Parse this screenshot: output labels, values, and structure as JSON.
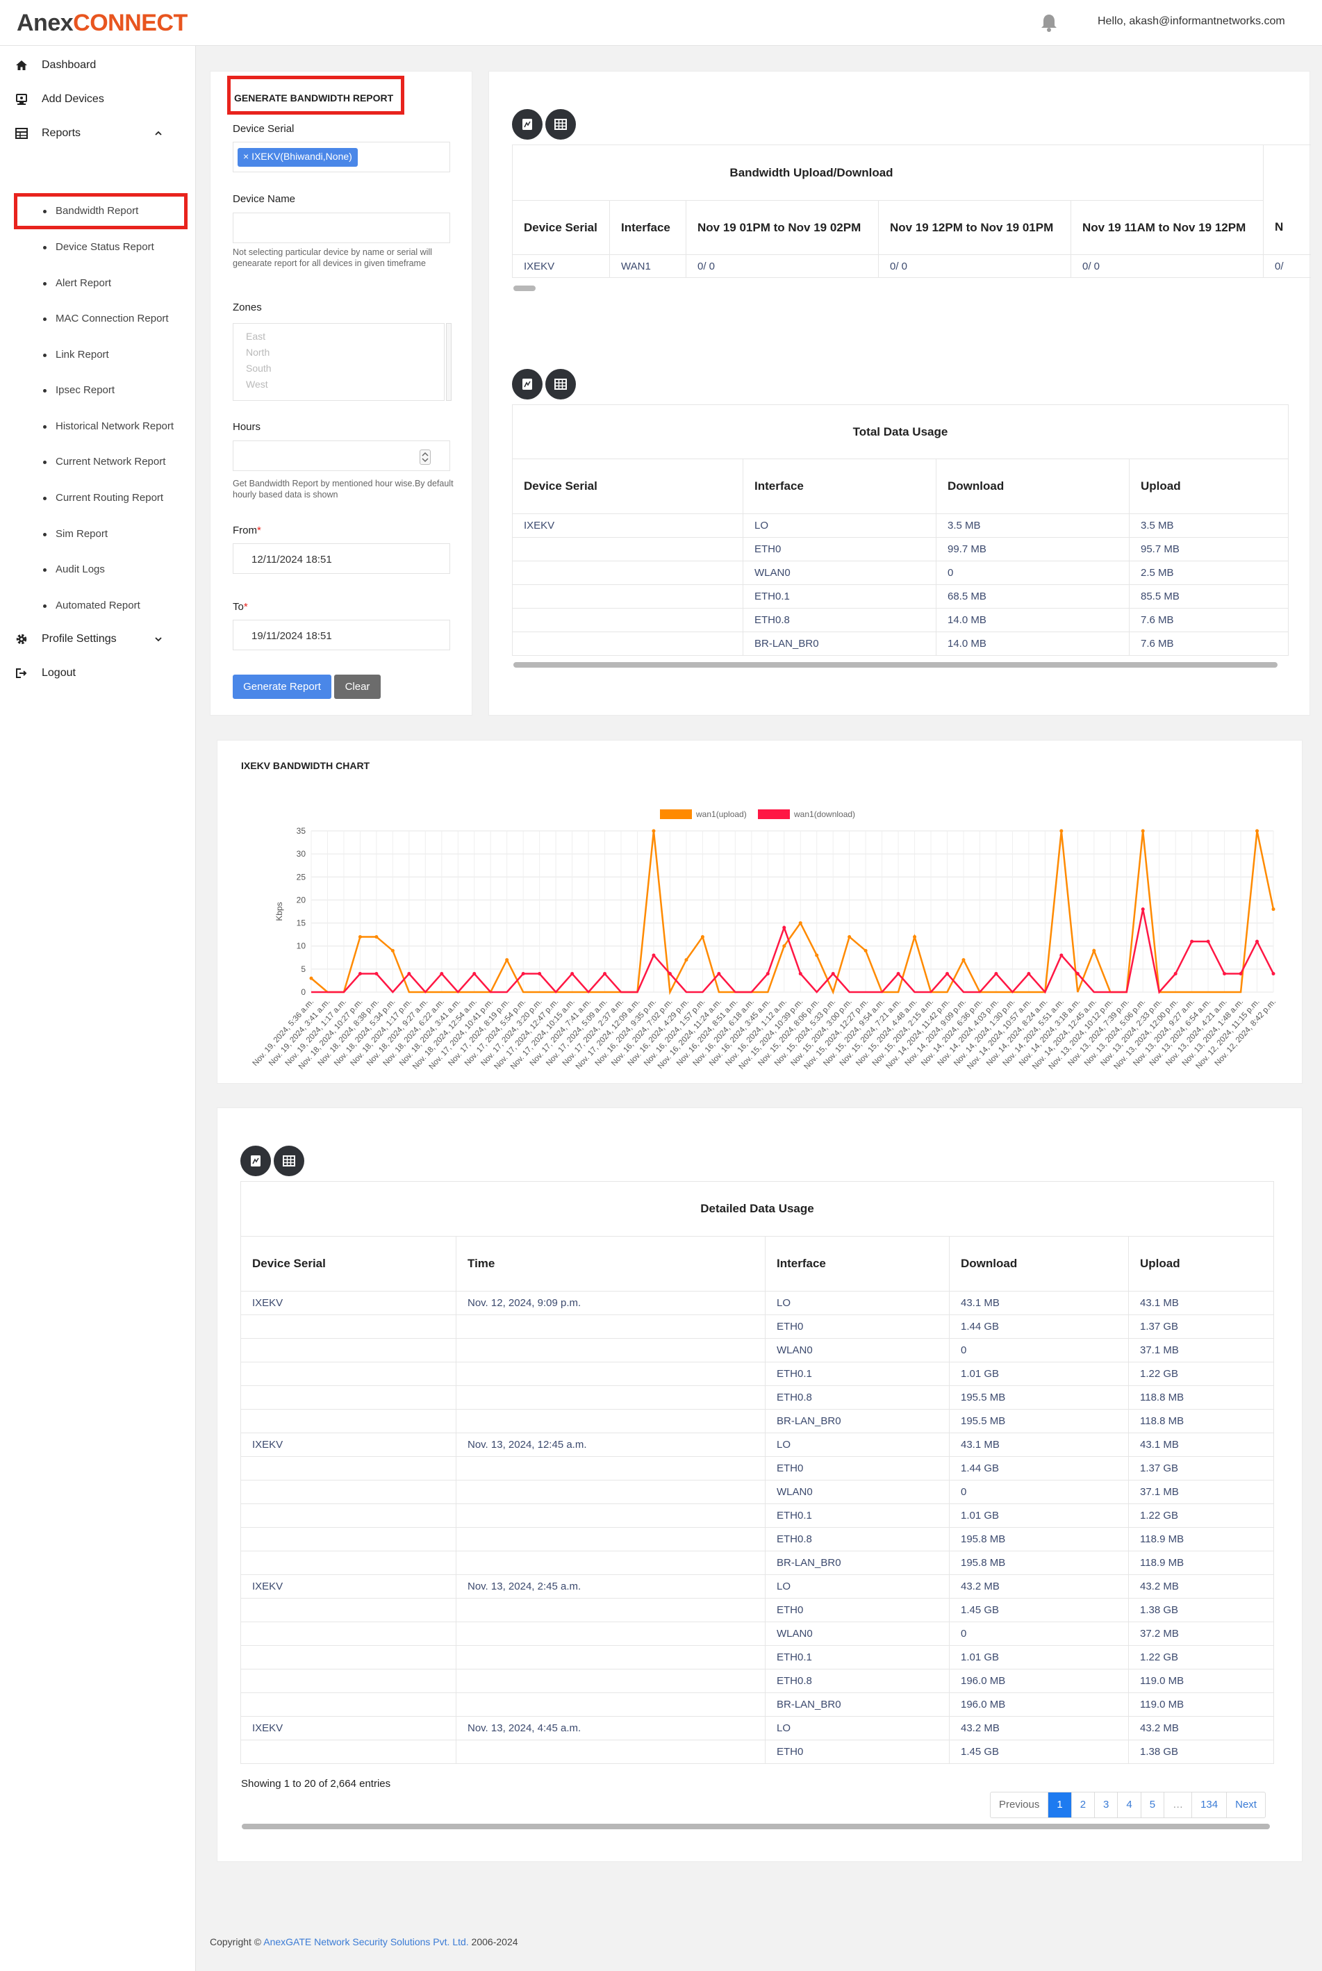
{
  "header": {
    "logo_main": "Anex",
    "logo_brand": "CONNECT",
    "greeting": "Hello, akash@informantnetworks.com"
  },
  "sidebar": {
    "items": [
      {
        "label": "Dashboard",
        "icon": "home-icon"
      },
      {
        "label": "Add Devices",
        "icon": "add-device-icon"
      },
      {
        "label": "Reports",
        "icon": "reports-icon"
      }
    ],
    "reports_sub": [
      "Bandwidth Report",
      "Device Status Report",
      "Alert Report",
      "MAC Connection Report",
      "Link Report",
      "Ipsec Report",
      "Historical Network Report",
      "Current Network Report",
      "Current Routing Report",
      "Sim Report",
      "Audit Logs",
      "Automated Report"
    ],
    "profile_settings": "Profile Settings",
    "logout": "Logout"
  },
  "form": {
    "title": "GENERATE BANDWIDTH REPORT",
    "device_serial_label": "Device Serial",
    "device_serial_chip": "× IXEKV(Bhiwandi,None)",
    "device_name_label": "Device Name",
    "device_name_help": "Not selecting particular device by name or serial will genearate report for all devices in given timeframe",
    "zones_label": "Zones",
    "zones": [
      "East",
      "North",
      "South",
      "West"
    ],
    "hours_label": "Hours",
    "hours_help": "Get Bandwidth Report by mentioned hour wise.By default hourly based data is shown",
    "from_label": "From",
    "from_value": "12/11/2024 18:51",
    "to_label": "To",
    "to_value": "19/11/2024 18:51",
    "required_mark": "*",
    "generate_button": "Generate Report",
    "clear_button": "Clear"
  },
  "bandwidth_table": {
    "title": "Bandwidth Upload/Download",
    "headers": [
      "Device Serial",
      "Interface",
      "Nov 19 01PM to Nov 19 02PM",
      "Nov 19 12PM to Nov 19 01PM",
      "Nov 19 11AM to Nov 19 12PM",
      "N"
    ],
    "rows": [
      [
        "IXEKV",
        "WAN1",
        "0/ 0",
        "0/ 0",
        "0/ 0",
        "0/"
      ]
    ]
  },
  "total_usage_table": {
    "title": "Total Data Usage",
    "headers": [
      "Device Serial",
      "Interface",
      "Download",
      "Upload"
    ],
    "rows": [
      [
        "IXEKV",
        "LO",
        "3.5 MB",
        "3.5 MB"
      ],
      [
        "",
        "ETH0",
        "99.7 MB",
        "95.7 MB"
      ],
      [
        "",
        "WLAN0",
        "0",
        "2.5 MB"
      ],
      [
        "",
        "ETH0.1",
        "68.5 MB",
        "85.5 MB"
      ],
      [
        "",
        "ETH0.8",
        "14.0 MB",
        "7.6 MB"
      ],
      [
        "",
        "BR-LAN_BR0",
        "14.0 MB",
        "7.6 MB"
      ]
    ]
  },
  "chart_data": {
    "type": "line",
    "title": "IXEKV BANDWIDTH CHART",
    "ylabel": "Kbps",
    "xlabel": "",
    "ylim": [
      0,
      35
    ],
    "yticks": [
      0,
      5,
      10,
      15,
      20,
      25,
      30,
      35
    ],
    "grid": true,
    "legend": "top-center",
    "colors": {
      "upload": "#ff8a00",
      "download": "#ff1744"
    },
    "x": [
      "Nov. 19, 2024, 5:36 a.m.",
      "Nov. 19, 2024, 3:41 a.m.",
      "Nov. 19, 2024, 1:17 a.m.",
      "Nov. 18, 2024, 10:27 p.m.",
      "Nov. 18, 2024, 8:38 p.m.",
      "Nov. 18, 2024, 5:34 p.m.",
      "Nov. 18, 2024, 1:17 p.m.",
      "Nov. 18, 2024, 9:27 a.m.",
      "Nov. 18, 2024, 6:22 a.m.",
      "Nov. 18, 2024, 3:41 a.m.",
      "Nov. 18, 2024, 12:54 a.m.",
      "Nov. 17, 2024, 10:41 p.m.",
      "Nov. 17, 2024, 8:19 p.m.",
      "Nov. 17, 2024, 5:54 p.m.",
      "Nov. 17, 2024, 3:20 p.m.",
      "Nov. 17, 2024, 12:47 p.m.",
      "Nov. 17, 2024, 10:15 a.m.",
      "Nov. 17, 2024, 7:41 a.m.",
      "Nov. 17, 2024, 5:09 a.m.",
      "Nov. 17, 2024, 2:37 a.m.",
      "Nov. 17, 2024, 12:09 a.m.",
      "Nov. 16, 2024, 9:35 p.m.",
      "Nov. 16, 2024, 7:02 p.m.",
      "Nov. 16, 2024, 4:29 p.m.",
      "Nov. 16, 2024, 1:57 p.m.",
      "Nov. 16, 2024, 11:24 a.m.",
      "Nov. 16, 2024, 8:51 a.m.",
      "Nov. 16, 2024, 6:18 a.m.",
      "Nov. 16, 2024, 3:45 a.m.",
      "Nov. 16, 2024, 1:12 a.m.",
      "Nov. 15, 2024, 10:39 p.m.",
      "Nov. 15, 2024, 8:06 p.m.",
      "Nov. 15, 2024, 5:33 p.m.",
      "Nov. 15, 2024, 3:00 p.m.",
      "Nov. 15, 2024, 12:27 p.m.",
      "Nov. 15, 2024, 9:54 a.m.",
      "Nov. 15, 2024, 7:21 a.m.",
      "Nov. 15, 2024, 4:48 a.m.",
      "Nov. 15, 2024, 2:15 a.m.",
      "Nov. 14, 2024, 11:42 p.m.",
      "Nov. 14, 2024, 9:09 p.m.",
      "Nov. 14, 2024, 6:36 p.m.",
      "Nov. 14, 2024, 4:03 p.m.",
      "Nov. 14, 2024, 1:30 p.m.",
      "Nov. 14, 2024, 10:57 a.m.",
      "Nov. 14, 2024, 8:24 a.m.",
      "Nov. 14, 2024, 5:51 a.m.",
      "Nov. 14, 2024, 3:18 a.m.",
      "Nov. 14, 2024, 12:45 a.m.",
      "Nov. 13, 2024, 10:12 p.m.",
      "Nov. 13, 2024, 7:39 p.m.",
      "Nov. 13, 2024, 5:06 p.m.",
      "Nov. 13, 2024, 2:33 p.m.",
      "Nov. 13, 2024, 12:00 p.m.",
      "Nov. 13, 2024, 9:27 a.m.",
      "Nov. 13, 2024, 6:54 a.m.",
      "Nov. 13, 2024, 4:21 a.m.",
      "Nov. 13, 2024, 1:48 a.m.",
      "Nov. 12, 2024, 11:15 p.m.",
      "Nov. 12, 2024, 8:42 p.m."
    ],
    "series": [
      {
        "name": "wan1(upload)",
        "values": [
          3,
          0,
          0,
          12,
          12,
          9,
          0,
          0,
          0,
          0,
          0,
          0,
          7,
          0,
          0,
          0,
          0,
          0,
          0,
          0,
          0,
          35,
          0,
          7,
          12,
          0,
          0,
          0,
          0,
          10,
          15,
          8,
          0,
          12,
          9,
          0,
          0,
          12,
          0,
          0,
          7,
          0,
          0,
          0,
          0,
          0,
          35,
          0,
          9,
          0,
          0,
          35,
          0,
          0,
          0,
          0,
          0,
          0,
          35,
          18
        ]
      },
      {
        "name": "wan1(download)",
        "values": [
          0,
          0,
          0,
          4,
          4,
          0,
          4,
          0,
          4,
          0,
          4,
          0,
          0,
          4,
          4,
          0,
          4,
          0,
          4,
          0,
          0,
          8,
          4,
          0,
          0,
          4,
          0,
          0,
          4,
          14,
          4,
          0,
          4,
          0,
          0,
          0,
          4,
          0,
          0,
          4,
          0,
          0,
          4,
          0,
          4,
          0,
          8,
          4,
          0,
          0,
          0,
          18,
          0,
          4,
          11,
          11,
          4,
          4,
          11,
          4
        ]
      }
    ]
  },
  "detail_table": {
    "title": "Detailed Data Usage",
    "headers": [
      "Device Serial",
      "Time",
      "Interface",
      "Download",
      "Upload"
    ],
    "rows": [
      [
        "IXEKV",
        "Nov. 12, 2024, 9:09 p.m.",
        "LO",
        "43.1 MB",
        "43.1 MB"
      ],
      [
        "",
        "",
        "ETH0",
        "1.44 GB",
        "1.37 GB"
      ],
      [
        "",
        "",
        "WLAN0",
        "0",
        "37.1 MB"
      ],
      [
        "",
        "",
        "ETH0.1",
        "1.01 GB",
        "1.22 GB"
      ],
      [
        "",
        "",
        "ETH0.8",
        "195.5 MB",
        "118.8 MB"
      ],
      [
        "",
        "",
        "BR-LAN_BR0",
        "195.5 MB",
        "118.8 MB"
      ],
      [
        "IXEKV",
        "Nov. 13, 2024, 12:45 a.m.",
        "LO",
        "43.1 MB",
        "43.1 MB"
      ],
      [
        "",
        "",
        "ETH0",
        "1.44 GB",
        "1.37 GB"
      ],
      [
        "",
        "",
        "WLAN0",
        "0",
        "37.1 MB"
      ],
      [
        "",
        "",
        "ETH0.1",
        "1.01 GB",
        "1.22 GB"
      ],
      [
        "",
        "",
        "ETH0.8",
        "195.8 MB",
        "118.9 MB"
      ],
      [
        "",
        "",
        "BR-LAN_BR0",
        "195.8 MB",
        "118.9 MB"
      ],
      [
        "IXEKV",
        "Nov. 13, 2024, 2:45 a.m.",
        "LO",
        "43.2 MB",
        "43.2 MB"
      ],
      [
        "",
        "",
        "ETH0",
        "1.45 GB",
        "1.38 GB"
      ],
      [
        "",
        "",
        "WLAN0",
        "0",
        "37.2 MB"
      ],
      [
        "",
        "",
        "ETH0.1",
        "1.01 GB",
        "1.22 GB"
      ],
      [
        "",
        "",
        "ETH0.8",
        "196.0 MB",
        "119.0 MB"
      ],
      [
        "",
        "",
        "BR-LAN_BR0",
        "196.0 MB",
        "119.0 MB"
      ],
      [
        "IXEKV",
        "Nov. 13, 2024, 4:45 a.m.",
        "LO",
        "43.2 MB",
        "43.2 MB"
      ],
      [
        "",
        "",
        "ETH0",
        "1.45 GB",
        "1.38 GB"
      ]
    ],
    "showing": "Showing 1 to 20 of 2,664 entries",
    "pagination": [
      "Previous",
      "1",
      "2",
      "3",
      "4",
      "5",
      "…",
      "134",
      "Next"
    ],
    "active_page": "1"
  },
  "footer": {
    "prefix": "Copyright © ",
    "company": "AnexGATE Network Security Solutions Pvt. Ltd.",
    "years": " 2006-2024"
  }
}
